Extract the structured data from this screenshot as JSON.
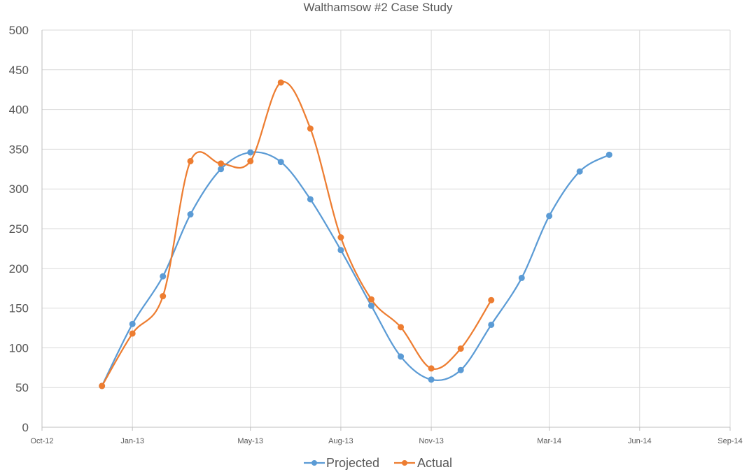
{
  "chart_data": {
    "type": "line",
    "title": "Walthamsow #2 Case Study",
    "xlabel": "",
    "ylabel": "",
    "x_axis_type": "date",
    "xlim": [
      "2012-10-01",
      "2014-09-01"
    ],
    "x_ticks": [
      "2012-10-01",
      "2013-01-01",
      "2013-05-01",
      "2013-08-01",
      "2013-11-01",
      "2014-03-01",
      "2014-06-01",
      "2014-09-01"
    ],
    "x_tick_labels": [
      "Oct-12",
      "Jan-13",
      "May-13",
      "Aug-13",
      "Nov-13",
      "Mar-14",
      "Jun-14",
      "Sep-14"
    ],
    "ylim": [
      0,
      500
    ],
    "y_ticks": [
      0,
      50,
      100,
      150,
      200,
      250,
      300,
      350,
      400,
      450,
      500
    ],
    "grid": true,
    "smooth": true,
    "legend_position": "bottom",
    "series": [
      {
        "name": "Projected",
        "color": "#5b9bd5",
        "points": [
          {
            "x": "2012-12-01",
            "y": 52
          },
          {
            "x": "2013-01-01",
            "y": 130
          },
          {
            "x": "2013-02-01",
            "y": 190
          },
          {
            "x": "2013-03-01",
            "y": 268
          },
          {
            "x": "2013-04-01",
            "y": 325
          },
          {
            "x": "2013-05-01",
            "y": 346
          },
          {
            "x": "2013-06-01",
            "y": 334
          },
          {
            "x": "2013-07-01",
            "y": 287
          },
          {
            "x": "2013-08-01",
            "y": 223
          },
          {
            "x": "2013-09-01",
            "y": 153
          },
          {
            "x": "2013-10-01",
            "y": 89
          },
          {
            "x": "2013-11-01",
            "y": 60
          },
          {
            "x": "2013-12-01",
            "y": 72
          },
          {
            "x": "2014-01-01",
            "y": 129
          },
          {
            "x": "2014-02-01",
            "y": 188
          },
          {
            "x": "2014-03-01",
            "y": 266
          },
          {
            "x": "2014-04-01",
            "y": 322
          },
          {
            "x": "2014-05-01",
            "y": 343
          }
        ]
      },
      {
        "name": "Actual",
        "color": "#ed7d31",
        "points": [
          {
            "x": "2012-12-01",
            "y": 52
          },
          {
            "x": "2013-01-01",
            "y": 118
          },
          {
            "x": "2013-02-01",
            "y": 165
          },
          {
            "x": "2013-03-01",
            "y": 335
          },
          {
            "x": "2013-04-01",
            "y": 332
          },
          {
            "x": "2013-05-01",
            "y": 335
          },
          {
            "x": "2013-06-01",
            "y": 434
          },
          {
            "x": "2013-07-01",
            "y": 376
          },
          {
            "x": "2013-08-01",
            "y": 239
          },
          {
            "x": "2013-09-01",
            "y": 161
          },
          {
            "x": "2013-10-01",
            "y": 126
          },
          {
            "x": "2013-11-01",
            "y": 74
          },
          {
            "x": "2013-12-01",
            "y": 99
          },
          {
            "x": "2014-01-01",
            "y": 160
          }
        ]
      }
    ]
  }
}
